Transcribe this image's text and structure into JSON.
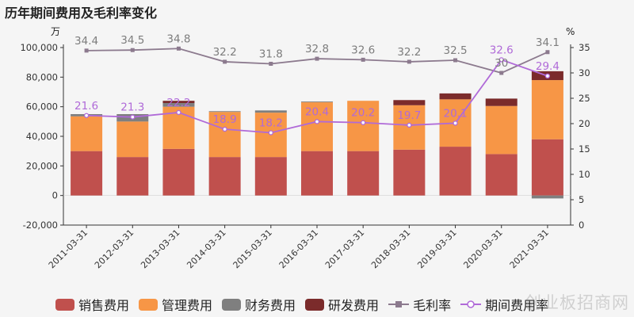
{
  "title": "历年期间费用及毛利率变化",
  "watermark": "创业板招商网",
  "chart_data": {
    "type": "bar",
    "stacked": true,
    "categories": [
      "2011-03-31",
      "2012-03-31",
      "2013-03-31",
      "2014-03-31",
      "2015-03-31",
      "2016-03-31",
      "2017-03-31",
      "2018-03-31",
      "2019-03-31",
      "2020-03-31",
      "2021-03-31"
    ],
    "left_axis": {
      "unit": "万",
      "ylim": [
        -20000,
        100000
      ],
      "ticks": [
        -20000,
        0,
        20000,
        40000,
        60000,
        80000,
        100000
      ],
      "tick_labels": [
        "-20,000",
        "0",
        "20,000",
        "40,000",
        "60,000",
        "80,000",
        "100,000"
      ]
    },
    "right_axis": {
      "unit": "%",
      "ylim": [
        0,
        35
      ],
      "ticks": [
        0,
        5,
        10,
        15,
        20,
        25,
        30,
        35
      ],
      "tick_labels": [
        "0",
        "5",
        "10",
        "15",
        "20",
        "25",
        "30",
        "35"
      ]
    },
    "series": [
      {
        "name": "销售费用",
        "kind": "bar",
        "color": "#c0504d",
        "values": [
          30000,
          26000,
          31500,
          26000,
          26000,
          30000,
          30000,
          31000,
          33000,
          28000,
          38000
        ]
      },
      {
        "name": "管理费用",
        "kind": "bar",
        "color": "#f79646",
        "values": [
          23500,
          24000,
          28500,
          30500,
          30000,
          33000,
          34000,
          30000,
          32000,
          32500,
          40000
        ]
      },
      {
        "name": "财务费用",
        "kind": "bar",
        "color": "#7f7f7f",
        "values": [
          1500,
          5000,
          2500,
          500,
          1500,
          500,
          0,
          0,
          0,
          0,
          -2000
        ]
      },
      {
        "name": "研发费用",
        "kind": "bar",
        "color": "#7b2b2b",
        "values": [
          0,
          0,
          1500,
          0,
          0,
          0,
          0,
          3500,
          4000,
          5000,
          6000
        ]
      },
      {
        "name": "毛利率",
        "kind": "line",
        "axis": "right",
        "color": "#8c7a8e",
        "values": [
          34.4,
          34.5,
          34.8,
          32.2,
          31.8,
          32.8,
          32.6,
          32.2,
          32.5,
          30,
          34.1
        ],
        "labels": [
          "34.4",
          "34.5",
          "34.8",
          "32.2",
          "31.8",
          "32.8",
          "32.6",
          "32.2",
          "32.5",
          "30",
          "34.1"
        ]
      },
      {
        "name": "期间费用率",
        "kind": "line",
        "axis": "right",
        "color": "#b06ad8",
        "values": [
          21.6,
          21.3,
          22.2,
          18.9,
          18.2,
          20.4,
          20.2,
          19.7,
          20.1,
          32.6,
          29.4
        ],
        "labels": [
          "21.6",
          "21.3",
          "22.2",
          "18.9",
          "18.2",
          "20.4",
          "20.2",
          "19.7",
          "20.1",
          "32.6",
          "29.4"
        ]
      }
    ],
    "legend_position": "bottom",
    "grid": false
  }
}
